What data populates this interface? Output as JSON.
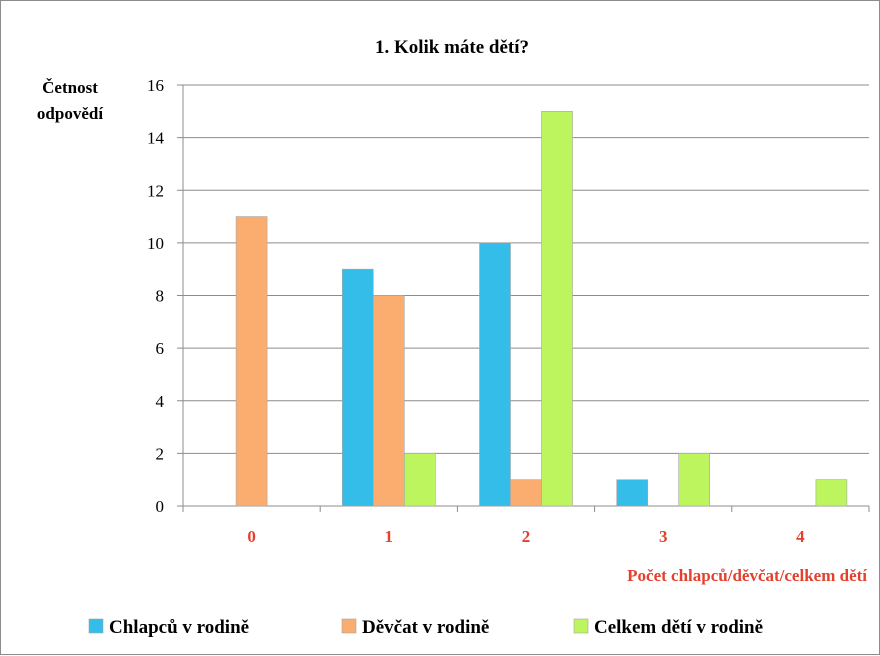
{
  "chart_data": {
    "type": "bar",
    "title": "1. Kolik máte dětí?",
    "ylabel_line1": "Četnost",
    "ylabel_line2": "odpovědí",
    "xlabel": "Počet  chlapců/děvčat/celkem  dětí",
    "categories": [
      "0",
      "1",
      "2",
      "3",
      "4"
    ],
    "ylim": [
      0,
      16
    ],
    "yticks": [
      0,
      2,
      4,
      6,
      8,
      10,
      12,
      14,
      16
    ],
    "grid": true,
    "legend_position": "bottom",
    "series": [
      {
        "name": "Chlapců v rodině",
        "color": "#33bde8",
        "values": [
          0,
          9,
          10,
          1,
          0
        ]
      },
      {
        "name": "Děvčat v rodině",
        "color": "#fbad6f",
        "values": [
          11,
          8,
          1,
          0,
          0
        ]
      },
      {
        "name": "Celkem dětí v rodině",
        "color": "#bcf55e",
        "values": [
          0,
          2,
          15,
          2,
          1
        ]
      }
    ],
    "category_label_color": "#e3402d",
    "xlabel_color": "#e3402d"
  }
}
